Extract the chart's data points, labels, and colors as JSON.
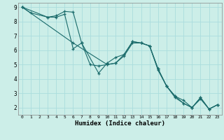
{
  "title": "",
  "xlabel": "Humidex (Indice chaleur)",
  "background_color": "#cceee8",
  "grid_color": "#aadddd",
  "line_color": "#1a6b6b",
  "xlim": [
    -0.5,
    23.5
  ],
  "ylim": [
    1.5,
    9.3
  ],
  "xticks": [
    0,
    1,
    2,
    3,
    4,
    5,
    6,
    7,
    8,
    9,
    10,
    11,
    12,
    13,
    14,
    15,
    16,
    17,
    18,
    19,
    20,
    21,
    22,
    23
  ],
  "yticks": [
    2,
    3,
    4,
    5,
    6,
    7,
    8,
    9
  ],
  "line1_x": [
    0,
    1,
    3,
    4,
    5,
    6,
    7,
    9,
    10,
    11,
    12,
    13,
    14,
    15,
    16,
    17,
    18,
    19,
    20,
    21,
    22,
    23
  ],
  "line1_y": [
    9,
    8.6,
    8.3,
    8.3,
    8.5,
    6.1,
    6.5,
    4.4,
    5.1,
    5.5,
    5.7,
    6.6,
    6.5,
    6.3,
    4.7,
    3.5,
    2.8,
    2.3,
    2.0,
    2.7,
    1.9,
    2.2
  ],
  "line2_x": [
    0,
    3,
    4,
    5,
    6,
    7,
    8,
    9,
    10,
    11,
    12,
    13,
    14,
    15,
    16,
    17,
    18,
    19,
    20,
    21,
    22,
    23
  ],
  "line2_y": [
    9,
    8.3,
    8.4,
    8.7,
    8.65,
    6.5,
    5.0,
    4.9,
    5.0,
    5.1,
    5.6,
    6.5,
    6.5,
    6.3,
    4.7,
    3.5,
    2.8,
    2.5,
    2.0,
    2.7,
    1.9,
    2.2
  ],
  "line3_x": [
    0,
    6,
    10,
    11,
    12,
    13,
    14,
    15,
    16,
    17,
    18,
    19,
    20,
    21,
    22,
    23
  ],
  "line3_y": [
    9,
    6.5,
    5.0,
    5.1,
    5.7,
    6.6,
    6.5,
    6.3,
    4.6,
    3.5,
    2.7,
    2.3,
    2.0,
    2.6,
    1.9,
    2.2
  ]
}
